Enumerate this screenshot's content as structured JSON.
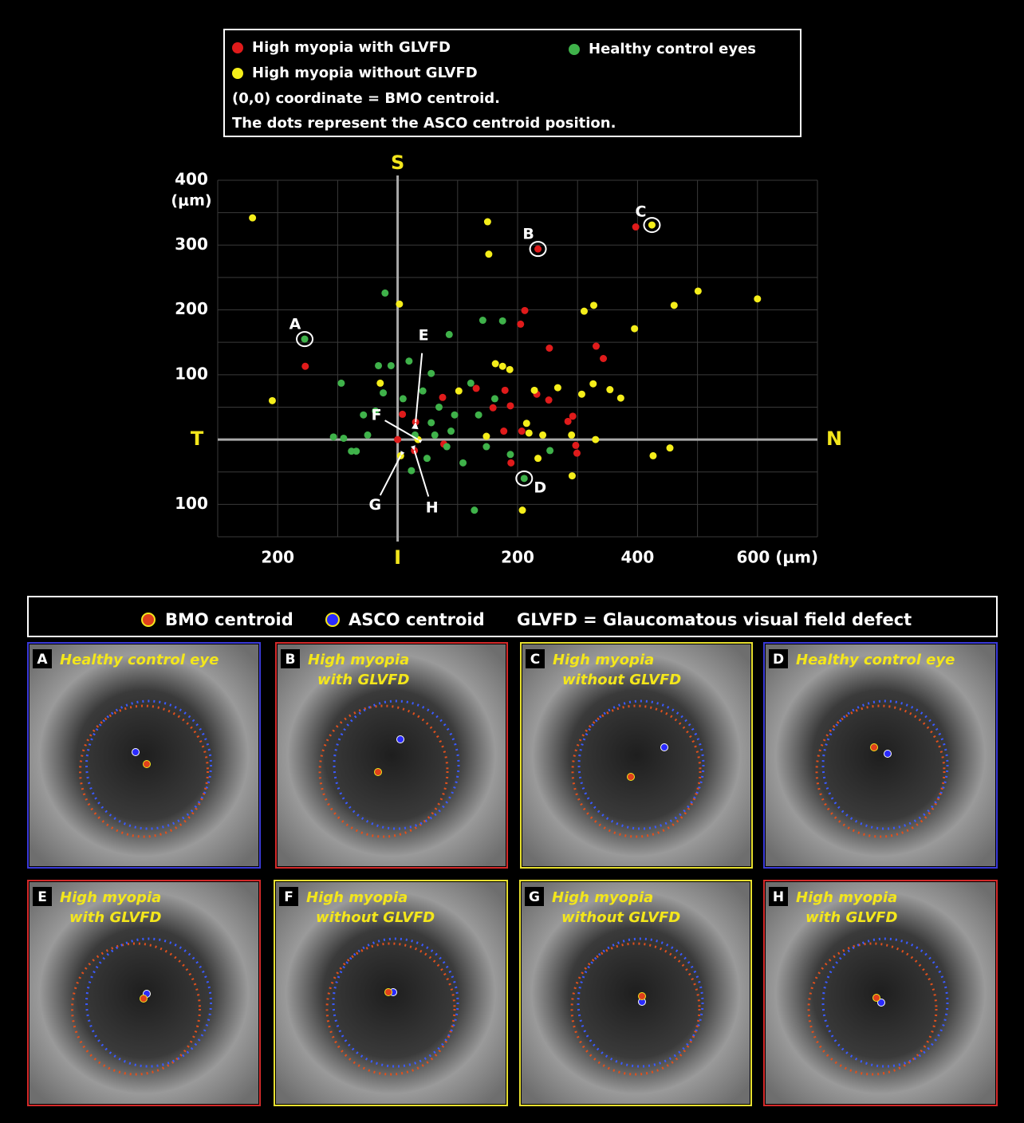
{
  "chart_data": {
    "type": "scatter",
    "xlim": [
      -300,
      700
    ],
    "ylim": [
      -150,
      400
    ],
    "xticks": [
      {
        "value": -200,
        "label": "200"
      },
      {
        "value": 200,
        "label": "200"
      },
      {
        "value": 400,
        "label": "400"
      },
      {
        "value": 600,
        "label": "600 (μm)"
      }
    ],
    "yticks": [
      {
        "value": -100,
        "label": "100"
      },
      100,
      200,
      300,
      400
    ],
    "y_unit": "(μm)",
    "xgrid": [
      -300,
      -200,
      -100,
      100,
      200,
      300,
      400,
      500,
      600,
      700
    ],
    "ygrid": [
      -150,
      -100,
      -50,
      50,
      100,
      150,
      200,
      250,
      300,
      350,
      400
    ],
    "axis_letters": {
      "top": "S",
      "bottom": "I",
      "left": "T",
      "right": "N"
    },
    "series": [
      {
        "name": "High myopia with GLVFD",
        "color": "#e01b1b",
        "x": [
          -154,
          234,
          397,
          212,
          205,
          253,
          331,
          343,
          75,
          131,
          179,
          159,
          188,
          232,
          252,
          284,
          292,
          297,
          299,
          177,
          189,
          207,
          0,
          30,
          28,
          77,
          8
        ],
        "y": [
          113,
          294,
          328,
          199,
          178,
          141,
          144,
          125,
          65,
          79,
          76,
          49,
          52,
          70,
          61,
          28,
          36,
          -9,
          -21,
          13,
          -36,
          13,
          0,
          27,
          -17,
          -7,
          39
        ]
      },
      {
        "name": "High myopia without GLVFD",
        "color": "#f5ee1a",
        "x": [
          -242,
          -209,
          3,
          150,
          152,
          311,
          327,
          395,
          461,
          501,
          600,
          424,
          163,
          175,
          187,
          228,
          267,
          307,
          326,
          354,
          372,
          215,
          219,
          242,
          290,
          330,
          148,
          426,
          454,
          234,
          291,
          208,
          102,
          34,
          5,
          -29
        ],
        "y": [
          342,
          60,
          209,
          336,
          286,
          198,
          207,
          171,
          207,
          229,
          217,
          331,
          117,
          113,
          108,
          76,
          80,
          70,
          86,
          77,
          64,
          25,
          10,
          7,
          7,
          0,
          5,
          -25,
          -13,
          -29,
          -56,
          -109,
          75,
          0,
          -25,
          87
        ]
      },
      {
        "name": "Healthy control eyes",
        "color": "#3fb24a",
        "x": [
          -155,
          211,
          -21,
          142,
          175,
          86,
          -94,
          -107,
          -90,
          -77,
          -69,
          -50,
          -37,
          -24,
          -11,
          -32,
          19,
          56,
          42,
          69,
          95,
          122,
          135,
          162,
          62,
          82,
          49,
          23,
          128,
          188,
          254,
          109,
          148,
          -57,
          9,
          29,
          56,
          89
        ],
        "y": [
          155,
          -60,
          226,
          184,
          183,
          162,
          87,
          4,
          2,
          -18,
          -18,
          7,
          44,
          72,
          114,
          114,
          121,
          102,
          75,
          50,
          38,
          87,
          38,
          63,
          7,
          -11,
          -29,
          -48,
          -109,
          -23,
          -17,
          -36,
          -11,
          38,
          63,
          7,
          26,
          13
        ]
      }
    ],
    "annotations": [
      {
        "label": "A",
        "x": -155,
        "y": 155
      },
      {
        "label": "B",
        "x": 234,
        "y": 294
      },
      {
        "label": "C",
        "x": 424,
        "y": 331
      },
      {
        "label": "D",
        "x": 211,
        "y": -60
      },
      {
        "label": "E",
        "x": 30,
        "y": 27
      },
      {
        "label": "F",
        "x": 34,
        "y": 0
      },
      {
        "label": "G",
        "x": 5,
        "y": -25
      },
      {
        "label": "H",
        "x": 28,
        "y": -17
      }
    ]
  },
  "legend_box": {
    "notes": [
      "(0,0) coordinate = BMO centroid.",
      "The dots represent the ASCO centroid position."
    ]
  },
  "panel_legend": {
    "bmo": "BMO centroid",
    "asco": "ASCO centroid",
    "definition": "GLVFD = Glaucomatous visual field defect"
  },
  "panels": [
    {
      "letter": "A",
      "caption": [
        "Healthy control eye"
      ],
      "border": "#3a3ad8"
    },
    {
      "letter": "B",
      "caption": [
        "High myopia",
        "with GLVFD"
      ],
      "border": "#d42a2a"
    },
    {
      "letter": "C",
      "caption": [
        "High myopia",
        "without GLVFD"
      ],
      "border": "#e8e030"
    },
    {
      "letter": "D",
      "caption": [
        "Healthy control eye"
      ],
      "border": "#3a3ad8"
    },
    {
      "letter": "E",
      "caption": [
        "High myopia",
        "with GLVFD"
      ],
      "border": "#d42a2a"
    },
    {
      "letter": "F",
      "caption": [
        "High myopia",
        "without GLVFD"
      ],
      "border": "#e8e030"
    },
    {
      "letter": "G",
      "caption": [
        "High myopia",
        "without GLVFD"
      ],
      "border": "#e8e030"
    },
    {
      "letter": "H",
      "caption": [
        "High myopia",
        "with GLVFD"
      ],
      "border": "#d42a2a"
    }
  ]
}
